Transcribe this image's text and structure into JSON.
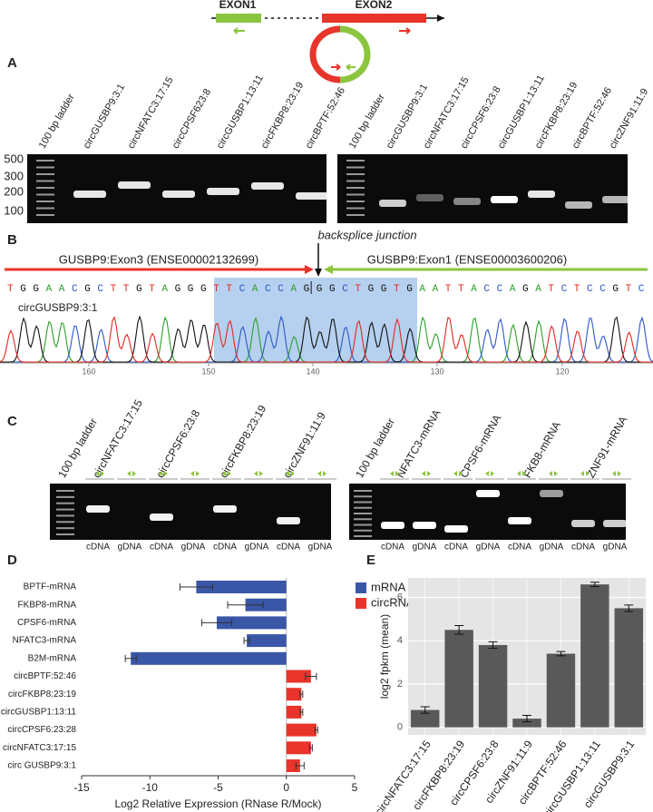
{
  "schematic": {
    "exon1": "EXON1",
    "exon2": "EXON2"
  },
  "panels": {
    "a": "A",
    "b": "B",
    "c": "C",
    "d": "D",
    "e": "E"
  },
  "panel_a": {
    "marker_labels": [
      500,
      300,
      200,
      100
    ],
    "left_lanes": [
      "100 bp ladder",
      "circGUSBP9:3:1",
      "circNFATC3:17:15",
      "circCPSF623:8",
      "circGUSBP1:13:11",
      "circFKBP8:23:19",
      "circBPTF:52:46"
    ],
    "right_lanes": [
      "100 bp ladder",
      "circGUSBP9:3:1",
      "circNFATC3:17:15",
      "circCPSF6:23:8",
      "circGUSBP1:13:11",
      "circFKBP8:23:19",
      "circBPTF:52:46",
      "circZNF91:11:9"
    ]
  },
  "panel_b": {
    "junction": "backsplice junction",
    "exon3": "GUSBP9:Exon3 (ENSE00002132699)",
    "exon1": "GUSBP9:Exon1 (ENSE00003600206)",
    "sequence": "TGGAACGCTTGTAGGGTTCACCAGGGCTGGTGAATTACCAGATCTCCGTC",
    "trace_name": "circGUSBP9:3:1",
    "positions": [
      160,
      150,
      140,
      130,
      120
    ]
  },
  "panel_c": {
    "left_lanes": [
      "100 bp ladder",
      "circNFATC3:17:15",
      "circCPSF6:23:8",
      "circFKBP8:23:19",
      "circZNF91:11:9"
    ],
    "right_lanes": [
      "100 bp ladder",
      "NFATC3-mRNA",
      "CPSF6-mRNA",
      "FKB8-mRNA",
      "ZNF91-mRNA"
    ],
    "left_templates": [
      "cDNA",
      "gDNA",
      "cDNA",
      "gDNA",
      "cDNA",
      "gDNA",
      "cDNA",
      "gDNA"
    ],
    "right_templates": [
      "cDNA",
      "gDNA",
      "cDNA",
      "gDNA",
      "cDNA",
      "gDNA",
      "cDNA",
      "gDNA"
    ]
  },
  "chart_data": [
    {
      "type": "hbar",
      "xlabel": "Log2 Relative Expression (RNase R/Mock)",
      "categories": [
        "BPTF-mRNA",
        "FKBP8-mRNA",
        "CPSF6-mRNA",
        "NFATC3-mRNA",
        "B2M-mRNA",
        "circBPTF:52:46",
        "circFKBP8:23:19",
        "circGUSBP1:13:11",
        "circCPSF6:23:28",
        "circNFATC3:17:15",
        "circ GUSBP9:3:1"
      ],
      "series": [
        {
          "name": "mRNA",
          "color": "#3a57a7",
          "values": [
            -6.6,
            -3.0,
            -5.1,
            -2.9,
            -11.4,
            null,
            null,
            null,
            null,
            null,
            null
          ],
          "errors": [
            1.2,
            1.3,
            1.1,
            0.2,
            0.4,
            null,
            null,
            null,
            null,
            null,
            null
          ]
        },
        {
          "name": "circRNA",
          "color": "#e8342a",
          "values": [
            null,
            null,
            null,
            null,
            null,
            1.8,
            1.1,
            1.1,
            2.2,
            1.8,
            1.0
          ],
          "errors": [
            null,
            null,
            null,
            null,
            null,
            0.4,
            0.1,
            0.1,
            0.1,
            0.1,
            0.3
          ]
        }
      ],
      "xlim": [
        -15,
        5
      ],
      "xticks": [
        -15,
        -10,
        -5,
        0,
        5
      ],
      "legend": "upper right"
    },
    {
      "type": "bar",
      "ylabel": "log2 fpkm (mean)",
      "categories": [
        "circNFATC3:17:15",
        "circFKBP8:23:19",
        "circCPSF6:23:8",
        "circZNF91:11:9",
        "circBPTF:52:46",
        "circGUSBP1:13:11",
        "circGUSBP9:3:1"
      ],
      "values": [
        0.8,
        4.5,
        3.8,
        0.4,
        3.4,
        6.6,
        5.5
      ],
      "errors": [
        0.15,
        0.2,
        0.15,
        0.15,
        0.1,
        0.1,
        0.15
      ],
      "color": "#595959",
      "ylim": [
        -0.35,
        6.9
      ],
      "yticks": [
        0,
        2,
        4,
        6
      ],
      "grid": true
    }
  ]
}
